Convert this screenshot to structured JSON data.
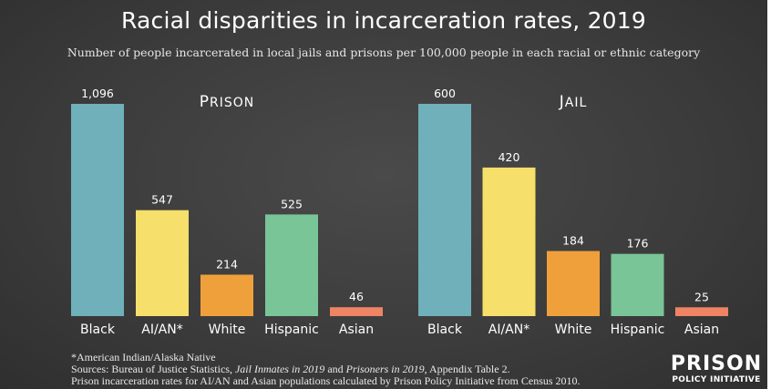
{
  "header": {
    "title": "Racial disparities in incarceration rates, 2019",
    "subtitle": "Number of people incarcerated in local jails and prisons per 100,000 people in each racial or ethnic category"
  },
  "chart_data": [
    {
      "type": "bar",
      "panel_label": "PRISON",
      "categories": [
        "Black",
        "AI/AN*",
        "White",
        "Hispanic",
        "Asian"
      ],
      "values": [
        1096,
        547,
        214,
        525,
        46
      ],
      "value_labels": [
        "1,096",
        "547",
        "214",
        "525",
        "46"
      ],
      "colors": [
        "#6fb0bb",
        "#f6df6a",
        "#f0a03a",
        "#79c597",
        "#ee8463"
      ],
      "ylim": [
        0,
        1096
      ],
      "grid": false
    },
    {
      "type": "bar",
      "panel_label": "JAIL",
      "categories": [
        "Black",
        "AI/AN*",
        "White",
        "Hispanic",
        "Asian"
      ],
      "values": [
        600,
        420,
        184,
        176,
        25
      ],
      "value_labels": [
        "600",
        "420",
        "184",
        "176",
        "25"
      ],
      "colors": [
        "#6fb0bb",
        "#f6df6a",
        "#f0a03a",
        "#79c597",
        "#ee8463"
      ],
      "ylim": [
        0,
        600
      ],
      "grid": false
    }
  ],
  "footnote": {
    "line1": "*American Indian/Alaska Native",
    "line2_prefix": "Sources: Bureau of Justice Statistics, ",
    "line2_title1": "Jail Inmates in 2019",
    "line2_mid": " and ",
    "line2_title2": "Prisoners in 2019",
    "line2_suffix": ", Appendix Table 2.",
    "line3": "Prison incarceration rates for AI/AN and Asian populations calculated by Prison Policy Initiative from Census 2010."
  },
  "logo": {
    "line1": "PRISON",
    "line2": "POLICY INITIATIVE"
  }
}
